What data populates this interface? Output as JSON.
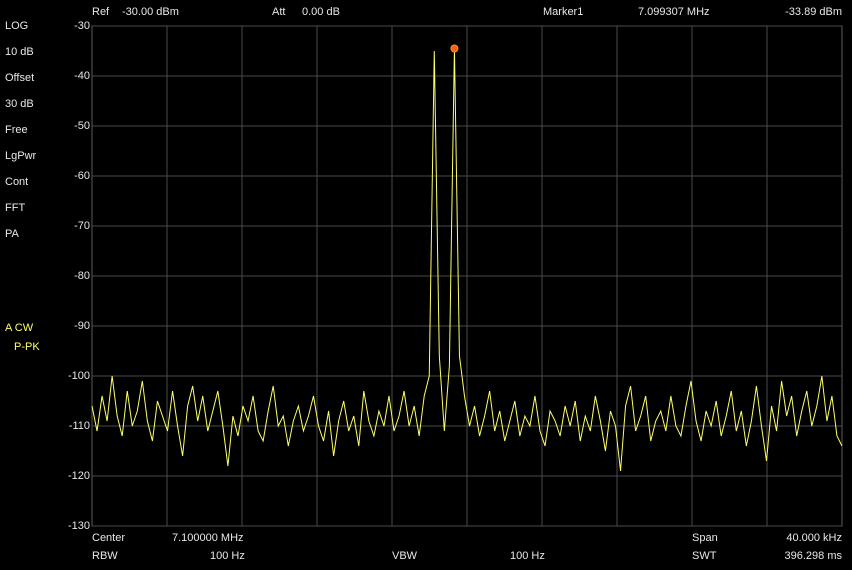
{
  "header": {
    "ref_label": "Ref",
    "ref_value": "-30.00 dBm",
    "att_label": "Att",
    "att_value": "0.00 dB",
    "marker_label": "Marker1",
    "marker_freq": "7.099307 MHz",
    "marker_level": "-33.89 dBm"
  },
  "side_labels": [
    "LOG",
    "10 dB",
    "Offset",
    "30 dB",
    "Free",
    "LgPwr",
    "Cont",
    "FFT",
    "PA"
  ],
  "trace_labels": [
    "A CW",
    "P-PK"
  ],
  "footer": {
    "center_label": "Center",
    "center_value": "7.100000 MHz",
    "span_label": "Span",
    "span_value": "40.000 kHz",
    "rbw_label": "RBW",
    "rbw_value": "100 Hz",
    "vbw_label": "VBW",
    "vbw_value": "100 Hz",
    "swt_label": "SWT",
    "swt_value": "396.298 ms"
  },
  "chart_data": {
    "type": "line",
    "color": "#ffff66",
    "ylim": [
      -130,
      -30
    ],
    "yticks": [
      -30,
      -40,
      -50,
      -60,
      -70,
      -80,
      -90,
      -100,
      -110,
      -120,
      -130
    ],
    "grid": true,
    "values": [
      -106,
      -111,
      -104,
      -109,
      -100,
      -108,
      -112,
      -103,
      -110,
      -107,
      -101,
      -109,
      -113,
      -105,
      -108,
      -111,
      -103,
      -110,
      -116,
      -106,
      -102,
      -109,
      -104,
      -111,
      -107,
      -103,
      -110,
      -118,
      -108,
      -112,
      -106,
      -109,
      -104,
      -111,
      -113,
      -107,
      -102,
      -110,
      -108,
      -114,
      -109,
      -106,
      -111,
      -108,
      -104,
      -110,
      -113,
      -107,
      -116,
      -109,
      -105,
      -111,
      -108,
      -114,
      -103,
      -109,
      -112,
      -107,
      -110,
      -104,
      -111,
      -108,
      -103,
      -110,
      -106,
      -112,
      -104,
      -100,
      -35,
      -96,
      -111,
      -98,
      -34.5,
      -96,
      -104,
      -110,
      -106,
      -112,
      -108,
      -103,
      -111,
      -107,
      -113,
      -109,
      -105,
      -112,
      -108,
      -110,
      -104,
      -111,
      -114,
      -107,
      -109,
      -112,
      -106,
      -110,
      -105,
      -113,
      -108,
      -111,
      -104,
      -109,
      -115,
      -107,
      -110,
      -119,
      -106,
      -102,
      -111,
      -108,
      -104,
      -113,
      -109,
      -107,
      -111,
      -104,
      -110,
      -112,
      -106,
      -101,
      -109,
      -113,
      -107,
      -110,
      -105,
      -112,
      -108,
      -103,
      -111,
      -107,
      -114,
      -109,
      -102,
      -110,
      -117,
      -106,
      -111,
      -101,
      -108,
      -104,
      -112,
      -107,
      -103,
      -110,
      -106,
      -100,
      -109,
      -104,
      -112,
      -114
    ]
  }
}
